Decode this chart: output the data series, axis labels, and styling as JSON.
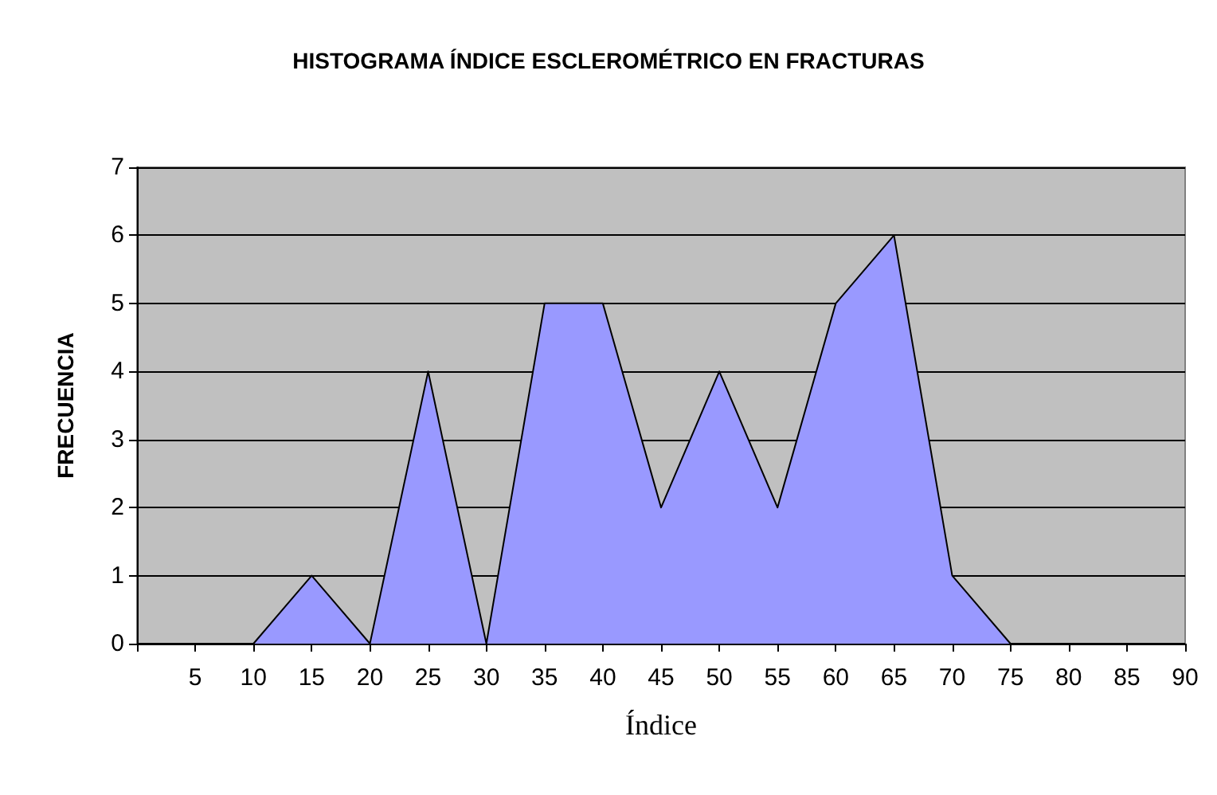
{
  "chart_data": {
    "type": "area",
    "title": "HISTOGRAMA ÍNDICE ESCLEROMÉTRICO EN FRACTURAS",
    "xlabel": "Índice",
    "ylabel": "FRECUENCIA",
    "categories": [
      null,
      "5",
      "10",
      "15",
      "20",
      "25",
      "30",
      "35",
      "40",
      "45",
      "50",
      "55",
      "60",
      "65",
      "70",
      "75",
      "80",
      "85",
      "90"
    ],
    "values": [
      0,
      0,
      0,
      1,
      0,
      4,
      0,
      5,
      5,
      2,
      4,
      2,
      5,
      6,
      1,
      0,
      0,
      0,
      0
    ],
    "color": "#9999ff",
    "ylim": [
      0,
      7
    ],
    "yticks": [
      0,
      1,
      2,
      3,
      4,
      5,
      6,
      7
    ],
    "grid": "y"
  }
}
